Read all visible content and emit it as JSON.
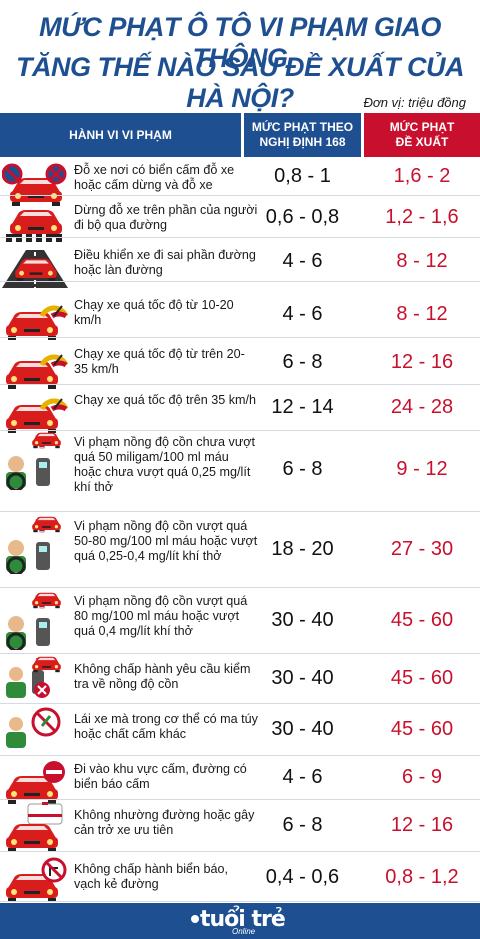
{
  "title": {
    "line1": "MỨC PHẠT Ô TÔ VI PHẠM GIAO THÔNG",
    "line2": "TĂNG THẾ NÀO SAU ĐỀ XUẤT CỦA HÀ NỘI?"
  },
  "unit": "Đơn vị: triệu đồng",
  "headers": {
    "violation": "HÀNH VI VI PHẠM",
    "current_line1": "MỨC PHẠT THEO",
    "current_line2": "NGHỊ ĐỊNH 168",
    "proposed_line1": "MỨC PHẠT",
    "proposed_line2": "ĐỀ XUẤT"
  },
  "rows": [
    {
      "icon": "no-parking-car-icon",
      "desc": "Đỗ xe nơi có biển cấm đỗ xe hoặc  cấm dừng và đỗ xe",
      "current": "0,8 - 1",
      "proposed": "1,6 - 2"
    },
    {
      "icon": "crosswalk-car-icon",
      "desc": "Dừng đỗ xe trên phần của người đi bộ qua đường",
      "current": "0,6 - 0,8",
      "proposed": "1,2 - 1,6"
    },
    {
      "icon": "wrong-lane-car-icon",
      "desc": "Điều khiển xe đi sai phần đường hoặc làn đường",
      "current": "4 - 6",
      "proposed": "8 - 12"
    },
    {
      "icon": "speed-car-icon",
      "desc": "Chạy xe quá tốc độ từ 10-20 km/h",
      "current": "4 - 6",
      "proposed": "8 - 12"
    },
    {
      "icon": "speed-car-icon",
      "desc": "Chạy xe quá tốc độ từ trên 20-35 km/h",
      "current": "6 - 8",
      "proposed": "12 - 16"
    },
    {
      "icon": "speed-car-icon",
      "desc": "Chạy xe quá tốc độ trên 35 km/h",
      "current": "12 - 14",
      "proposed": "24 - 28"
    },
    {
      "icon": "alcohol-driver-icon",
      "desc": "Vi phạm nồng độ cồn chưa vượt quá 50 miligam/100 ml máu hoặc chưa vượt quá 0,25 mg/lít khí thở",
      "current": "6 - 8",
      "proposed": "9 - 12"
    },
    {
      "icon": "alcohol-driver-icon",
      "desc": "Vi phạm nồng độ cồn vượt quá 50-80 mg/100 ml máu hoặc vượt quá 0,25-0,4 mg/lít khí thở",
      "current": "18 - 20",
      "proposed": "27 - 30"
    },
    {
      "icon": "alcohol-driver-icon",
      "desc": "Vi phạm nồng độ cồn vượt quá 80 mg/100 ml máu hoặc vượt quá 0,4 mg/lít khí thở",
      "current": "30 - 40",
      "proposed": "45 - 60"
    },
    {
      "icon": "refuse-alcohol-test-icon",
      "desc": "Không chấp hành yêu cầu kiểm tra về nồng độ cồn",
      "current": "30 - 40",
      "proposed": "45 - 60"
    },
    {
      "icon": "drug-driver-icon",
      "desc": "Lái xe mà trong cơ thể có ma túy hoặc chất cấm khác",
      "current": "30 - 40",
      "proposed": "45 - 60"
    },
    {
      "icon": "no-entry-car-icon",
      "desc": "Đi vào khu vực cấm, đường có biển báo cấm",
      "current": "4 - 6",
      "proposed": "6 - 9"
    },
    {
      "icon": "ambulance-car-icon",
      "desc": "Không nhường đường hoặc gây cản trở xe ưu tiên",
      "current": "6 - 8",
      "proposed": "12 - 16"
    },
    {
      "icon": "no-turn-sign-car-icon",
      "desc": "Không chấp hành biển báo, vạch kẻ đường",
      "current": "0,4 - 0,6",
      "proposed": "0,8 - 1,2"
    }
  ],
  "footer": {
    "logo": "tuổi trẻ",
    "logo_sub": "Online"
  },
  "colors": {
    "primary": "#1d4f91",
    "accent": "#c8102e"
  }
}
